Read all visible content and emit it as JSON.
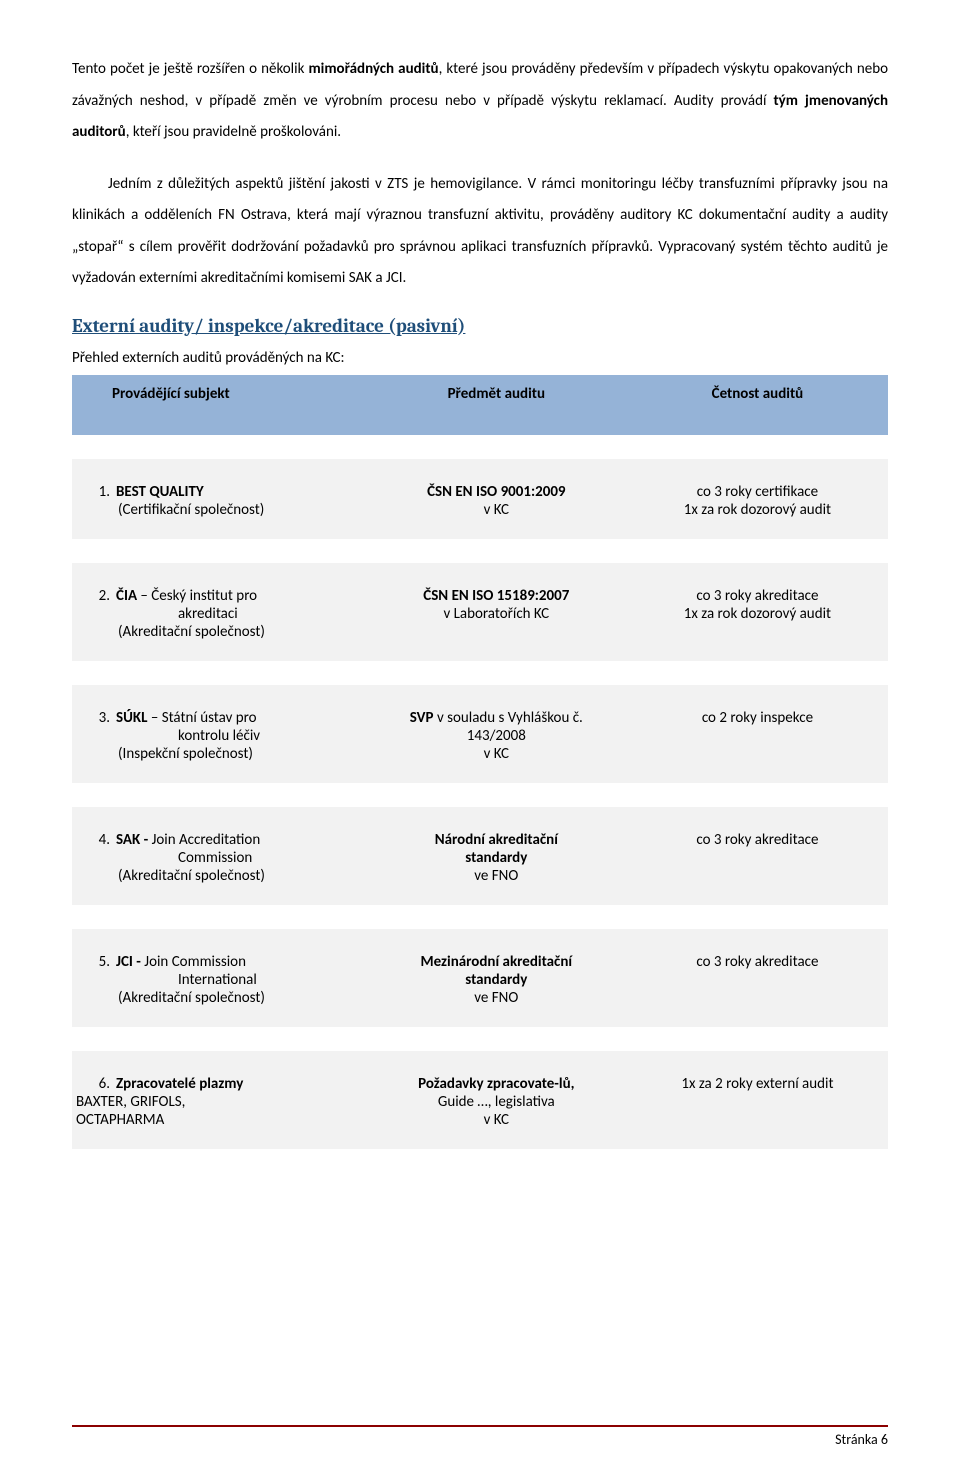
{
  "paragraphs": {
    "p1_a": "Tento počet je ještě rozšířen o několik ",
    "p1_b": "mimořádných auditů",
    "p1_c": ", které jsou prováděny především v případech výskytu opakovaných nebo závažných neshod, v případě změn ve výrobním procesu nebo v případě výskytu reklamací. Audity provádí ",
    "p1_d": "tým jmenovaných auditorů",
    "p1_e": ", kteří jsou pravidelně proškolováni.",
    "p2": "Jedním z důležitých aspektů jištění jakosti v ZTS je hemovigilance. V rámci monitoringu léčby transfuzními přípravky jsou na klinikách a odděleních FN Ostrava, která mají výraznou transfuzní aktivitu, prováděny auditory KC dokumentační audity a audity „stopař“ s cílem prověřit dodržování požadavků pro správnou aplikaci transfuzních přípravků. Vypracovaný systém těchto auditů je vyžadován externími akreditačními komisemi SAK a JCI."
  },
  "section_heading": "Externí audity/ inspekce/akreditace (pasivní)",
  "sub_line": "Přehled externích auditů prováděných na KC:",
  "table": {
    "headers": {
      "subject": "Provádějící subjekt",
      "topic": "Předmět auditu",
      "freq": "Četnost auditů"
    },
    "rows": [
      {
        "num": "1.",
        "name": "BEST QUALITY",
        "name_suffix": "",
        "desc_lines": [
          "(Certifikační společnost)"
        ],
        "topic_lines": [
          "ČSN EN ISO 9001:2009",
          "v KC"
        ],
        "topic_bold": [
          true,
          false
        ],
        "freq_lines": [
          "co 3 roky certifikace",
          "1x za rok dozorový audit"
        ]
      },
      {
        "num": "2.",
        "name": "ČIA",
        "name_suffix": " – Český institut pro",
        "desc_lines": [
          "akreditaci",
          "(Akreditační společnost)"
        ],
        "topic_lines": [
          "ČSN EN ISO 15189:2007",
          "v Laboratořích KC"
        ],
        "topic_bold": [
          true,
          false
        ],
        "freq_lines": [
          "co 3 roky akreditace",
          "1x za rok dozorový audit"
        ]
      },
      {
        "num": "3.",
        "name": "SÚKL",
        "name_suffix": " – Státní ústav pro",
        "desc_lines": [
          "kontrolu léčiv",
          "(Inspekční společnost)"
        ],
        "topic_lines": [
          "SVP",
          " v souladu s Vyhláškou č.",
          "143/2008",
          "v KC"
        ],
        "topic_bold": [
          true,
          false,
          false,
          false
        ],
        "topic_first_inline": true,
        "freq_lines": [
          "co 2 roky inspekce"
        ]
      },
      {
        "num": "4.",
        "name": "SAK -",
        "name_suffix": " Join Accreditation",
        "desc_lines": [
          "Commission",
          "(Akreditační společnost)"
        ],
        "topic_lines": [
          "Národní akreditační",
          "standardy",
          "ve FNO"
        ],
        "topic_bold": [
          true,
          true,
          false
        ],
        "freq_lines": [
          "co 3 roky akreditace"
        ]
      },
      {
        "num": "5.",
        "name": "JCI -",
        "name_suffix": " Join Commission",
        "desc_lines": [
          "International",
          "(Akreditační společnost)"
        ],
        "topic_lines": [
          "Mezinárodní akreditační",
          "standardy",
          "ve FNO"
        ],
        "topic_bold": [
          true,
          true,
          false
        ],
        "freq_lines": [
          "co 3 roky akreditace"
        ]
      },
      {
        "num": "6.",
        "name": "Zpracovatelé plazmy",
        "name_suffix": "",
        "desc_lines": [
          "BAXTER, GRIFOLS,",
          "OCTAPHARMA"
        ],
        "desc_no_indent": true,
        "topic_lines": [
          "Požadavky  zpracovate-lů,",
          "Guide …, legislativa",
          "v KC"
        ],
        "topic_bold": [
          true,
          false,
          false
        ],
        "freq_lines": [
          "1x za 2 roky externí audit"
        ]
      }
    ]
  },
  "footer": "Stránka 6"
}
